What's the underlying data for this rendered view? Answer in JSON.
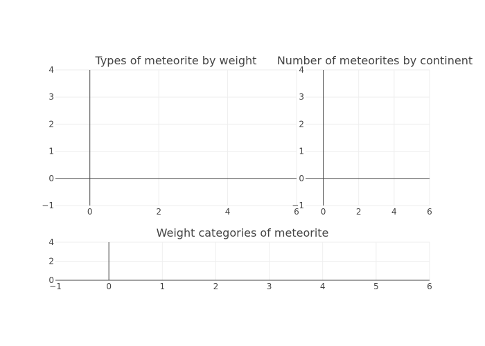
{
  "chart_data": [
    {
      "type": "bar",
      "title": "Types of meteorite by weight",
      "xlabel": "",
      "ylabel": "",
      "xlim": [
        -1,
        6
      ],
      "ylim": [
        -1,
        4
      ],
      "xticks": [
        0,
        2,
        4,
        6
      ],
      "yticks": [
        -1,
        0,
        1,
        2,
        3,
        4
      ],
      "xtick_labels": [
        "0",
        "2",
        "4",
        "6"
      ],
      "ytick_labels": [
        "−1",
        "0",
        "1",
        "2",
        "3",
        "4"
      ],
      "grid": true,
      "series": []
    },
    {
      "type": "bar",
      "title": "Number of meteorites by continent",
      "xlabel": "",
      "ylabel": "",
      "xlim": [
        -1,
        6
      ],
      "ylim": [
        -1,
        4
      ],
      "xticks": [
        0,
        2,
        4,
        6
      ],
      "yticks": [
        -1,
        0,
        1,
        2,
        3,
        4
      ],
      "xtick_labels": [
        "0",
        "2",
        "4",
        "6"
      ],
      "ytick_labels": [
        "−1",
        "0",
        "1",
        "2",
        "3",
        "4"
      ],
      "grid": true,
      "series": []
    },
    {
      "type": "bar",
      "title": "Weight categories of meteorite",
      "xlabel": "",
      "ylabel": "",
      "xlim": [
        -1,
        6
      ],
      "ylim": [
        -1,
        4
      ],
      "xticks": [
        -1,
        0,
        1,
        2,
        3,
        4,
        5,
        6
      ],
      "yticks": [
        0,
        2,
        4
      ],
      "xtick_labels": [
        "−1",
        "0",
        "1",
        "2",
        "3",
        "4",
        "5",
        "6"
      ],
      "ytick_labels": [
        "0",
        "2",
        "4"
      ],
      "grid": true,
      "series": []
    }
  ],
  "colors": {
    "zero_line": "#444444",
    "grid": "#eeeeee",
    "text": "#444444",
    "background": "#ffffff"
  }
}
